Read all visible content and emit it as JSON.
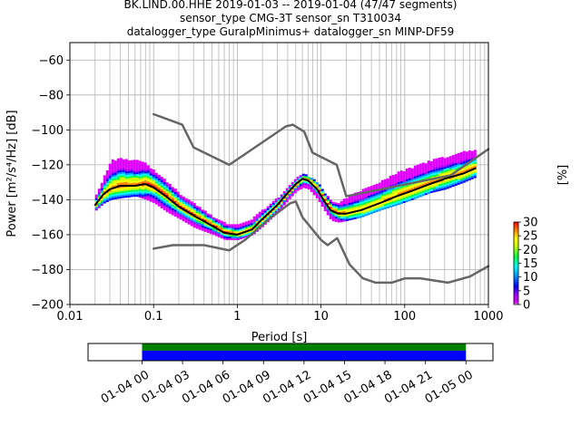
{
  "title": {
    "line1": "BK.LIND.00.HHE   2019-01-03 -- 2019-01-04  (47/47 segments)",
    "line2": "sensor_type CMG-3T sensor_sn T310034",
    "line3": "datalogger_type GuralpMinimus+ datalogger_sn MINP-DF59"
  },
  "colors": {
    "noise_model": "#666666",
    "mean_curve": "#000000",
    "coverage_top": "#008000",
    "coverage_bottom": "#0000ff"
  },
  "chart_data": [
    {
      "type": "heatmap",
      "title": "",
      "xlabel": "Period [s]",
      "ylabel": "Power [m²/s⁴/Hz] [dB]",
      "x_scale": "log",
      "xlim": [
        0.01,
        1000
      ],
      "ylim": [
        -200,
        -50
      ],
      "x_ticks": [
        {
          "value": 0.01,
          "label": "0.01"
        },
        {
          "value": 0.1,
          "label": "0.1"
        },
        {
          "value": 1,
          "label": "1"
        },
        {
          "value": 10,
          "label": "10"
        },
        {
          "value": 100,
          "label": "100"
        },
        {
          "value": 1000,
          "label": "1000"
        }
      ],
      "y_ticks": [
        -60,
        -80,
        -100,
        -120,
        -140,
        -160,
        -180,
        -200
      ],
      "grid": true,
      "colorbar": {
        "label": "[%]",
        "min": 0,
        "max": 30,
        "ticks": [
          0,
          5,
          10,
          15,
          20,
          25,
          30
        ]
      },
      "series": [
        {
          "name": "",
          "role": "high-noise-model",
          "points": [
            [
              0.1,
              -91
            ],
            [
              0.22,
              -97
            ],
            [
              0.3,
              -110
            ],
            [
              0.8,
              -120
            ],
            [
              3.8,
              -98
            ],
            [
              4.6,
              -97
            ],
            [
              6.3,
              -101
            ],
            [
              7.9,
              -113
            ],
            [
              15.4,
              -120
            ],
            [
              20,
              -138
            ],
            [
              354.8,
              -126
            ],
            [
              1000,
              -111
            ]
          ]
        },
        {
          "name": "",
          "role": "low-noise-model",
          "points": [
            [
              0.1,
              -168
            ],
            [
              0.17,
              -166
            ],
            [
              0.4,
              -166
            ],
            [
              0.8,
              -169
            ],
            [
              1.24,
              -163
            ],
            [
              2.4,
              -151
            ],
            [
              4.3,
              -142
            ],
            [
              5,
              -141
            ],
            [
              6,
              -150
            ],
            [
              10,
              -163
            ],
            [
              12,
              -166
            ],
            [
              15.6,
              -162
            ],
            [
              21.9,
              -177
            ],
            [
              31.6,
              -185
            ],
            [
              45,
              -187.5
            ],
            [
              70,
              -187.5
            ],
            [
              101,
              -185
            ],
            [
              154,
              -185
            ],
            [
              328,
              -187.5
            ],
            [
              600,
              -184
            ],
            [
              1000,
              -178
            ]
          ]
        },
        {
          "name": "",
          "role": "mean-psd",
          "points": [
            [
              0.02,
              -143
            ],
            [
              0.025,
              -137
            ],
            [
              0.03,
              -134
            ],
            [
              0.04,
              -132
            ],
            [
              0.06,
              -132
            ],
            [
              0.08,
              -131
            ],
            [
              0.1,
              -133
            ],
            [
              0.14,
              -138
            ],
            [
              0.2,
              -144
            ],
            [
              0.3,
              -149
            ],
            [
              0.5,
              -155
            ],
            [
              0.7,
              -159
            ],
            [
              1,
              -160
            ],
            [
              1.5,
              -157
            ],
            [
              2,
              -151
            ],
            [
              3,
              -143
            ],
            [
              4,
              -136
            ],
            [
              5,
              -131
            ],
            [
              6,
              -128
            ],
            [
              7,
              -129
            ],
            [
              9,
              -134
            ],
            [
              11,
              -141
            ],
            [
              13,
              -146
            ],
            [
              16,
              -148
            ],
            [
              20,
              -148
            ],
            [
              30,
              -146
            ],
            [
              50,
              -142
            ],
            [
              80,
              -138
            ],
            [
              120,
              -135
            ],
            [
              200,
              -131
            ],
            [
              300,
              -128
            ],
            [
              500,
              -125
            ],
            [
              700,
              -122
            ]
          ]
        }
      ],
      "psd_density": [
        {
          "period": 0.02,
          "lo": -146,
          "hi": -138
        },
        {
          "period": 0.025,
          "lo": -142,
          "hi": -127
        },
        {
          "period": 0.03,
          "lo": -140,
          "hi": -118
        },
        {
          "period": 0.04,
          "lo": -139,
          "hi": -117
        },
        {
          "period": 0.06,
          "lo": -138,
          "hi": -118
        },
        {
          "period": 0.08,
          "lo": -140,
          "hi": -120
        },
        {
          "period": 0.1,
          "lo": -142,
          "hi": -124
        },
        {
          "period": 0.14,
          "lo": -147,
          "hi": -130
        },
        {
          "period": 0.2,
          "lo": -151,
          "hi": -137
        },
        {
          "period": 0.3,
          "lo": -156,
          "hi": -143
        },
        {
          "period": 0.5,
          "lo": -160,
          "hi": -150
        },
        {
          "period": 0.7,
          "lo": -163,
          "hi": -154
        },
        {
          "period": 1,
          "lo": -163,
          "hi": -155
        },
        {
          "period": 1.5,
          "lo": -160,
          "hi": -151
        },
        {
          "period": 2,
          "lo": -155,
          "hi": -146
        },
        {
          "period": 3,
          "lo": -147,
          "hi": -139
        },
        {
          "period": 4,
          "lo": -140,
          "hi": -133
        },
        {
          "period": 5,
          "lo": -135,
          "hi": -128
        },
        {
          "period": 6,
          "lo": -133,
          "hi": -126
        },
        {
          "period": 7,
          "lo": -134,
          "hi": -127
        },
        {
          "period": 9,
          "lo": -140,
          "hi": -131
        },
        {
          "period": 11,
          "lo": -147,
          "hi": -137
        },
        {
          "period": 13,
          "lo": -152,
          "hi": -142
        },
        {
          "period": 16,
          "lo": -153,
          "hi": -142
        },
        {
          "period": 20,
          "lo": -152,
          "hi": -139
        },
        {
          "period": 30,
          "lo": -150,
          "hi": -135
        },
        {
          "period": 50,
          "lo": -146,
          "hi": -130
        },
        {
          "period": 80,
          "lo": -143,
          "hi": -125
        },
        {
          "period": 120,
          "lo": -140,
          "hi": -122
        },
        {
          "period": 200,
          "lo": -136,
          "hi": -118
        },
        {
          "period": 300,
          "lo": -134,
          "hi": -116
        },
        {
          "period": 500,
          "lo": -130,
          "hi": -113
        },
        {
          "period": 700,
          "lo": -127,
          "hi": -112
        }
      ]
    },
    {
      "type": "bar",
      "title": "",
      "role": "data-coverage",
      "xlim": [
        "2019-01-03 20:00",
        "2019-01-05 02:00"
      ],
      "coverage_start": "2019-01-04 00:00",
      "coverage_end": "2019-01-05 00:00",
      "x_ticks": [
        "01-04 00",
        "01-04 03",
        "01-04 06",
        "01-04 09",
        "01-04 12",
        "01-04 15",
        "01-04 18",
        "01-04 21",
        "01-05 00"
      ],
      "tick_times": [
        "2019-01-04 00:00",
        "2019-01-04 03:00",
        "2019-01-04 06:00",
        "2019-01-04 09:00",
        "2019-01-04 12:00",
        "2019-01-04 15:00",
        "2019-01-04 18:00",
        "2019-01-04 21:00",
        "2019-01-05 00:00"
      ]
    }
  ]
}
